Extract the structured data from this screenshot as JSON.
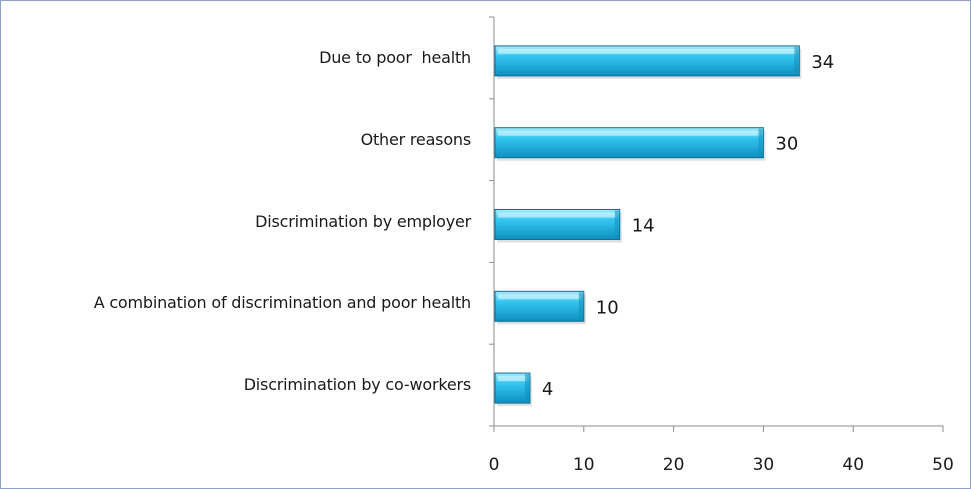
{
  "chart_data": {
    "type": "bar",
    "orientation": "horizontal",
    "categories": [
      "Due to poor  health",
      "Other reasons",
      "Discrimination by employer",
      "A combination of discrimination and poor health",
      "Discrimination by co-workers"
    ],
    "values": [
      34,
      30,
      14,
      10,
      4
    ],
    "data_labels": [
      "34",
      "30",
      "14",
      "10",
      "4"
    ],
    "xlim": [
      0,
      50
    ],
    "x_ticks": [
      0,
      10,
      20,
      30,
      40,
      50
    ],
    "x_tick_labels": [
      "0",
      "10",
      "20",
      "30",
      "40",
      "50"
    ],
    "title": "",
    "xlabel": "",
    "ylabel": "",
    "grid": false,
    "legend": "none",
    "colors": {
      "bar_top": "#a9ecfb",
      "bar_mid": "#33c5ef",
      "bar_bottom": "#0f8fbd",
      "bar_edge": "#0a6f96",
      "axis": "#8c8c8c",
      "frame": "#8ea1c4"
    }
  }
}
